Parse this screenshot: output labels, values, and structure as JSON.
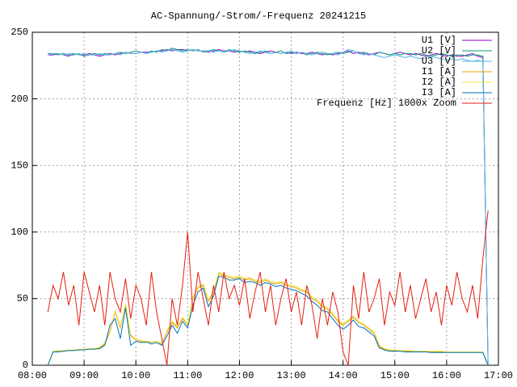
{
  "chart_data": {
    "type": "line",
    "title": "AC-Spannung/-Strom/-Frequenz 20241215",
    "x": [
      8.3,
      8.4,
      8.5,
      8.6,
      8.7,
      8.8,
      8.9,
      9.0,
      9.1,
      9.2,
      9.3,
      9.4,
      9.5,
      9.6,
      9.7,
      9.8,
      9.9,
      10.0,
      10.1,
      10.2,
      10.3,
      10.4,
      10.5,
      10.6,
      10.7,
      10.8,
      10.9,
      11.0,
      11.1,
      11.2,
      11.3,
      11.4,
      11.5,
      11.6,
      11.7,
      11.8,
      11.9,
      12.0,
      12.1,
      12.2,
      12.3,
      12.4,
      12.5,
      12.6,
      12.7,
      12.8,
      12.9,
      13.0,
      13.1,
      13.2,
      13.3,
      13.4,
      13.5,
      13.6,
      13.7,
      13.8,
      13.9,
      14.0,
      14.1,
      14.2,
      14.3,
      14.4,
      14.5,
      14.6,
      14.7,
      14.8,
      14.9,
      15.0,
      15.1,
      15.2,
      15.3,
      15.4,
      15.5,
      15.6,
      15.7,
      15.8,
      15.9,
      16.0,
      16.1,
      16.2,
      16.3,
      16.4,
      16.5,
      16.6,
      16.7,
      16.8
    ],
    "series": [
      {
        "name": "U1 [V]",
        "color": "#9400d3",
        "values": [
          233,
          233,
          234,
          233,
          232,
          234,
          233,
          233,
          234,
          233,
          232,
          233,
          234,
          233,
          234,
          235,
          234,
          234,
          235,
          235,
          235,
          236,
          236,
          237,
          236,
          237,
          237,
          236,
          237,
          236,
          236,
          235,
          236,
          237,
          236,
          236,
          235,
          236,
          235,
          236,
          235,
          234,
          235,
          236,
          235,
          234,
          235,
          234,
          235,
          234,
          234,
          235,
          234,
          233,
          234,
          233,
          234,
          235,
          236,
          234,
          235,
          234,
          233,
          234,
          235,
          234,
          233,
          234,
          235,
          234,
          233,
          234,
          233,
          232,
          233,
          234,
          233,
          232,
          233,
          232,
          232,
          233,
          234,
          232,
          231,
          0
        ]
      },
      {
        "name": "U2 [V]",
        "color": "#009e73",
        "values": [
          234,
          234,
          233,
          234,
          233,
          233,
          234,
          232,
          233,
          234,
          233,
          234,
          233,
          234,
          235,
          234,
          235,
          236,
          235,
          234,
          236,
          235,
          237,
          236,
          238,
          237,
          236,
          237,
          236,
          237,
          235,
          236,
          237,
          236,
          235,
          237,
          236,
          235,
          236,
          235,
          234,
          235,
          236,
          234,
          235,
          236,
          234,
          235,
          234,
          235,
          233,
          234,
          235,
          234,
          233,
          234,
          235,
          234,
          235,
          236,
          234,
          235,
          234,
          233,
          235,
          234,
          233,
          234,
          233,
          234,
          234,
          233,
          234,
          233,
          232,
          233,
          234,
          233,
          232,
          233,
          233,
          232,
          233,
          233,
          232,
          0
        ]
      },
      {
        "name": "U3 [V]",
        "color": "#56b4e9",
        "values": [
          233,
          234,
          234,
          233,
          234,
          234,
          233,
          234,
          233,
          233,
          234,
          233,
          233,
          234,
          233,
          235,
          234,
          234,
          235,
          234,
          235,
          236,
          235,
          236,
          237,
          236,
          235,
          236,
          237,
          236,
          236,
          236,
          235,
          236,
          235,
          236,
          237,
          236,
          235,
          234,
          235,
          236,
          235,
          234,
          235,
          234,
          235,
          236,
          234,
          235,
          234,
          233,
          234,
          235,
          234,
          234,
          233,
          235,
          237,
          236,
          234,
          233,
          234,
          233,
          232,
          231,
          232,
          233,
          232,
          231,
          232,
          231,
          230,
          231,
          232,
          231,
          230,
          229,
          230,
          229,
          230,
          229,
          228,
          229,
          228,
          0
        ]
      },
      {
        "name": "I1 [A]",
        "color": "#e69f00",
        "values": [
          0,
          10,
          10.5,
          11,
          11,
          11.5,
          11.5,
          12,
          12,
          12.5,
          13,
          16,
          25,
          40,
          28,
          45,
          22,
          19,
          18,
          18,
          17,
          18,
          16,
          25,
          32,
          28,
          35,
          30,
          50,
          58,
          60,
          48,
          55,
          69,
          67,
          66,
          65,
          66,
          64,
          65,
          63,
          62,
          64,
          62,
          61,
          62,
          60,
          59,
          58,
          56,
          55,
          50,
          48,
          44,
          42,
          38,
          33,
          30,
          33,
          36,
          32,
          30,
          27,
          24,
          14,
          12,
          11,
          11,
          11,
          10.5,
          10.5,
          10.5,
          10.5,
          10.5,
          10,
          10,
          10,
          10,
          10,
          10,
          10,
          10,
          10,
          10,
          10,
          0
        ]
      },
      {
        "name": "I2 [A]",
        "color": "#f0e442",
        "values": [
          0,
          10.5,
          11,
          11,
          11.5,
          11.5,
          12,
          12,
          12.5,
          12.5,
          13.5,
          17,
          26,
          41,
          29,
          46,
          23,
          19.5,
          18.5,
          18,
          17.5,
          18,
          16.5,
          26,
          33,
          29,
          36,
          31,
          51,
          59,
          61,
          49,
          56,
          70,
          68,
          67,
          66,
          67,
          65,
          66,
          64,
          63,
          65,
          63,
          62,
          63,
          61,
          60,
          59,
          57,
          56,
          51,
          49,
          45,
          43,
          39,
          34,
          31,
          34,
          37,
          33,
          31,
          28,
          25,
          15,
          12.5,
          11.5,
          11.5,
          11,
          11,
          11,
          10.5,
          10.5,
          10.5,
          10.5,
          10.5,
          10.5,
          10,
          10,
          10,
          10,
          10,
          10,
          10,
          10,
          0
        ]
      },
      {
        "name": "I3 [A]",
        "color": "#0072b2",
        "values": [
          0,
          10,
          10,
          10.5,
          11,
          11,
          11.5,
          11.5,
          12,
          12,
          12.5,
          15,
          30,
          35,
          20,
          43,
          15,
          18,
          17,
          17.5,
          16,
          17,
          15,
          22,
          30,
          24,
          33,
          28,
          45,
          55,
          58,
          44,
          52,
          67,
          66,
          64,
          64,
          65,
          62,
          63,
          62,
          60,
          62,
          61,
          59,
          60,
          58,
          57,
          56,
          54,
          52,
          48,
          45,
          41,
          40,
          35,
          30,
          27,
          30,
          34,
          29,
          28,
          25,
          22,
          13,
          11.5,
          10.5,
          10.5,
          10.5,
          10,
          10,
          10,
          10,
          10,
          9.5,
          9.5,
          9.5,
          9.5,
          9.5,
          9.5,
          9.5,
          9.5,
          9.5,
          9.5,
          9.5,
          0
        ]
      },
      {
        "name": "Frequenz [Hz] 1000x Zoom",
        "color": "#e51e10",
        "values": [
          40,
          60,
          50,
          70,
          45,
          60,
          30,
          70,
          55,
          40,
          60,
          30,
          70,
          50,
          40,
          65,
          35,
          60,
          50,
          30,
          70,
          40,
          20,
          0,
          50,
          30,
          60,
          100,
          40,
          70,
          50,
          30,
          60,
          40,
          70,
          50,
          60,
          45,
          65,
          35,
          55,
          70,
          40,
          60,
          30,
          50,
          65,
          40,
          55,
          30,
          60,
          45,
          20,
          50,
          30,
          55,
          40,
          10,
          0,
          60,
          35,
          70,
          40,
          50,
          65,
          30,
          55,
          45,
          70,
          40,
          60,
          35,
          50,
          65,
          40,
          55,
          30,
          60,
          45,
          70,
          50,
          40,
          60,
          35,
          80,
          116
        ]
      }
    ],
    "xlim": [
      8,
      17
    ],
    "xticks": [
      {
        "value": 8,
        "label": "08:00"
      },
      {
        "value": 9,
        "label": "09:00"
      },
      {
        "value": 10,
        "label": "10:00"
      },
      {
        "value": 11,
        "label": "11:00"
      },
      {
        "value": 12,
        "label": "12:00"
      },
      {
        "value": 13,
        "label": "13:00"
      },
      {
        "value": 14,
        "label": "14:00"
      },
      {
        "value": 15,
        "label": "15:00"
      },
      {
        "value": 16,
        "label": "16:00"
      },
      {
        "value": 17,
        "label": "17:00"
      }
    ],
    "ylim": [
      0,
      250
    ],
    "yticks": [
      0,
      50,
      100,
      150,
      200,
      250
    ],
    "grid": true,
    "legend": "top right"
  }
}
